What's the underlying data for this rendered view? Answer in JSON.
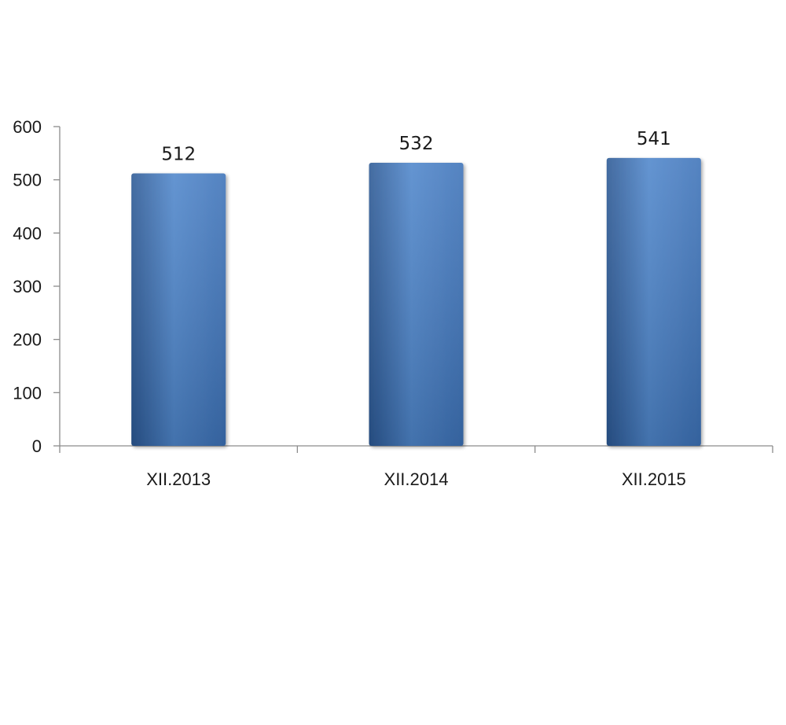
{
  "chart_data": {
    "type": "bar",
    "categories": [
      "XII.2013",
      "XII.2014",
      "XII.2015"
    ],
    "values": [
      512,
      532,
      541
    ],
    "data_labels": [
      "512",
      "532",
      "541"
    ],
    "y_ticks": [
      0,
      100,
      200,
      300,
      400,
      500,
      600
    ],
    "ylim": [
      0,
      600
    ],
    "grid": false,
    "legend": "none",
    "bar_color": "#3d72b8",
    "bar_color_light": "#4f86cb",
    "bar_color_dark": "#2b5894"
  }
}
